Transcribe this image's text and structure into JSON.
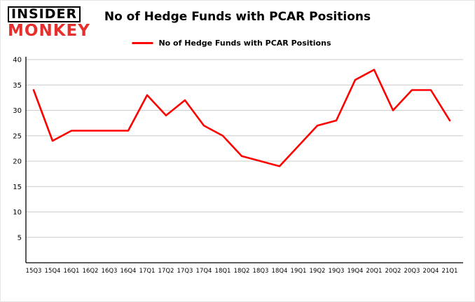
{
  "logo": {
    "line1": "INSIDER",
    "line2": "MONKEY"
  },
  "title": "No of Hedge Funds with PCAR Positions",
  "legend": {
    "label": "No of Hedge Funds with PCAR Positions",
    "color": "#ff0000"
  },
  "chart_data": {
    "type": "line",
    "title": "No of Hedge Funds with PCAR Positions",
    "categories": [
      "15Q3",
      "15Q4",
      "16Q1",
      "16Q2",
      "16Q3",
      "16Q4",
      "17Q1",
      "17Q2",
      "17Q3",
      "17Q4",
      "18Q1",
      "18Q2",
      "18Q3",
      "18Q4",
      "19Q1",
      "19Q2",
      "19Q3",
      "19Q4",
      "20Q1",
      "20Q2",
      "20Q3",
      "20Q4",
      "21Q1"
    ],
    "series": [
      {
        "name": "No of Hedge Funds with PCAR Positions",
        "values": [
          34,
          24,
          26,
          26,
          26,
          26,
          33,
          29,
          32,
          27,
          25,
          21,
          20,
          19,
          23,
          27,
          28,
          36,
          38,
          30,
          34,
          34,
          28
        ]
      }
    ],
    "xlabel": "",
    "ylabel": "",
    "ylim": [
      0,
      40
    ],
    "y_ticks": [
      5,
      10,
      15,
      20,
      25,
      30,
      35,
      40
    ],
    "grid": true,
    "grid_color": "#cccccc",
    "axis_color": "#000000",
    "line_color": "#ff0000",
    "legend_position": "top"
  }
}
